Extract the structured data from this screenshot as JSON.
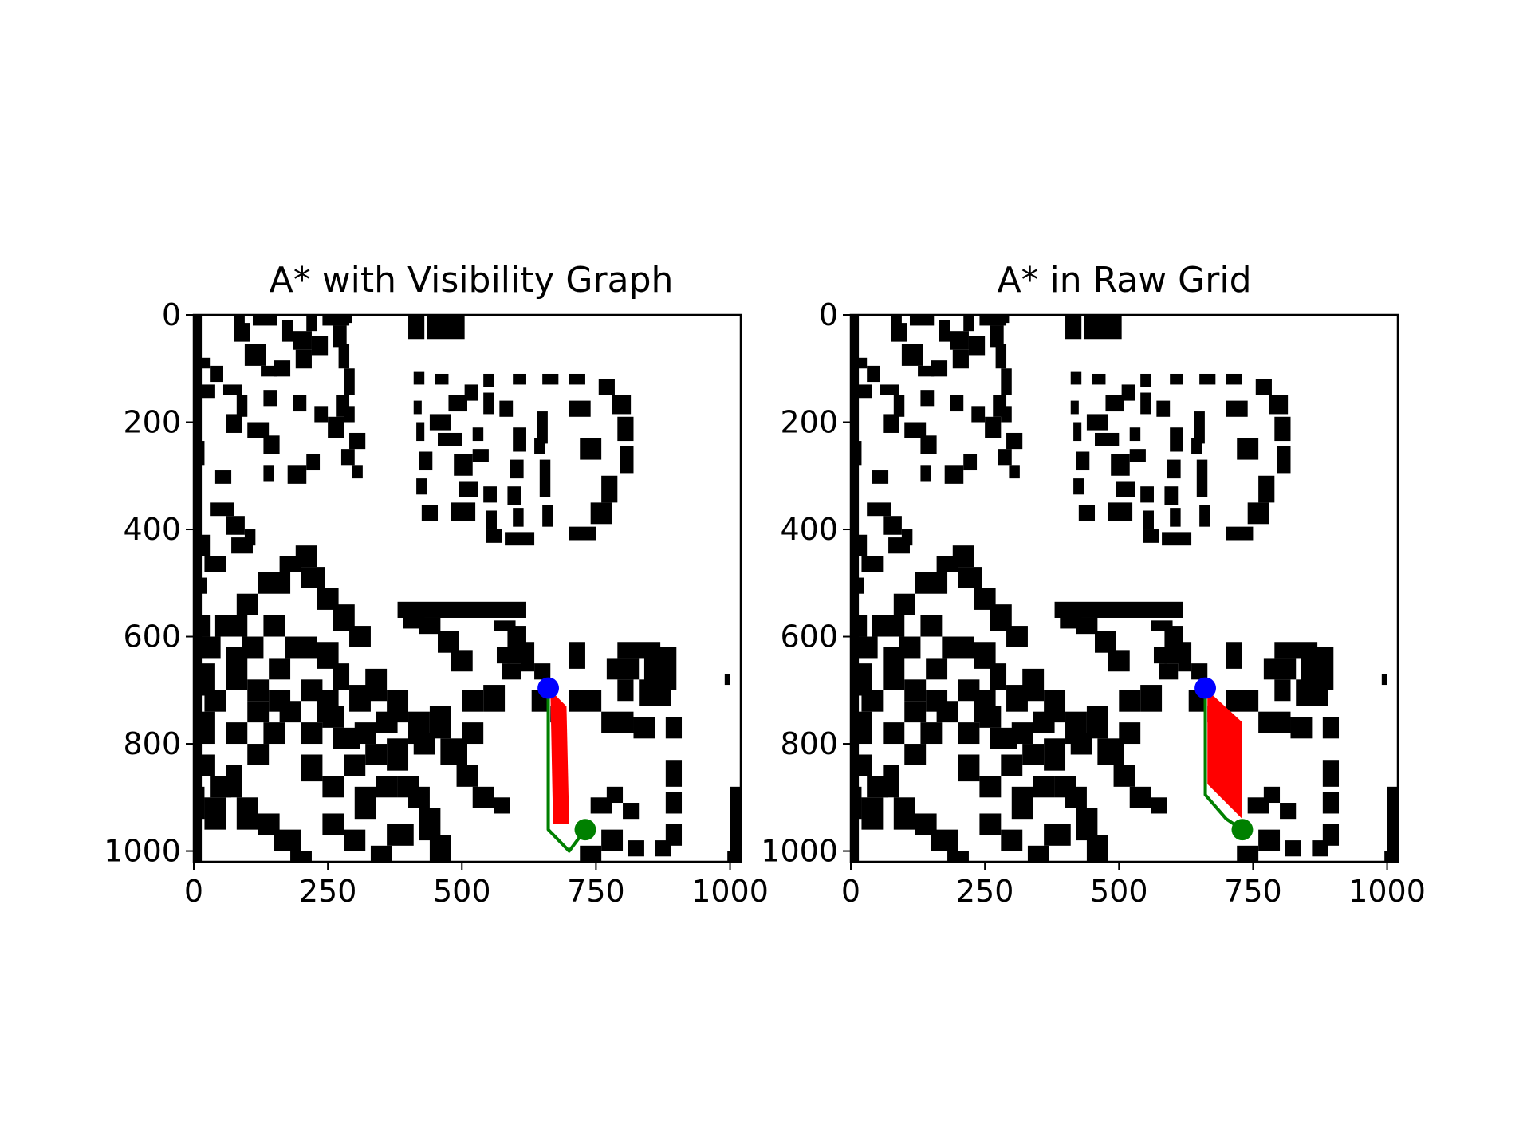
{
  "chart_data": [
    {
      "type": "map-path",
      "title": "A* with Visibility Graph",
      "xlim": [
        0,
        1020
      ],
      "ylim": [
        1020,
        0
      ],
      "xticks": [
        0,
        250,
        500,
        750,
        1000
      ],
      "yticks": [
        0,
        200,
        400,
        600,
        800,
        1000
      ],
      "start": {
        "x": 661,
        "y": 696,
        "color": "#0000ff"
      },
      "goal": {
        "x": 730,
        "y": 960,
        "color": "#008000"
      },
      "path": {
        "color": "#008000",
        "points": [
          [
            661,
            696
          ],
          [
            661,
            960
          ],
          [
            700,
            1000
          ],
          [
            730,
            960
          ]
        ]
      },
      "explored_region": {
        "color": "#ff0000",
        "points": [
          [
            665,
            700
          ],
          [
            695,
            730
          ],
          [
            700,
            950
          ],
          [
            670,
            950
          ]
        ]
      }
    },
    {
      "type": "map-path",
      "title": "A* in Raw Grid",
      "xlim": [
        0,
        1020
      ],
      "ylim": [
        1020,
        0
      ],
      "xticks": [
        0,
        250,
        500,
        750,
        1000
      ],
      "yticks": [
        0,
        200,
        400,
        600,
        800,
        1000
      ],
      "start": {
        "x": 661,
        "y": 696,
        "color": "#0000ff"
      },
      "goal": {
        "x": 730,
        "y": 960,
        "color": "#008000"
      },
      "path": {
        "color": "#008000",
        "points": [
          [
            661,
            696
          ],
          [
            661,
            895
          ],
          [
            700,
            940
          ],
          [
            730,
            960
          ]
        ]
      },
      "explored_region": {
        "color": "#ff0000",
        "points": [
          [
            665,
            700
          ],
          [
            730,
            760
          ],
          [
            730,
            940
          ],
          [
            665,
            875
          ]
        ]
      }
    }
  ],
  "obstacles": [
    [
      0,
      0,
      15,
      1020
    ],
    [
      75,
      0,
      20,
      30
    ],
    [
      110,
      0,
      45,
      20
    ],
    [
      165,
      10,
      20,
      40
    ],
    [
      185,
      30,
      35,
      35
    ],
    [
      210,
      0,
      20,
      30
    ],
    [
      240,
      0,
      50,
      20
    ],
    [
      75,
      15,
      30,
      35
    ],
    [
      95,
      55,
      40,
      40
    ],
    [
      125,
      95,
      30,
      20
    ],
    [
      150,
      85,
      30,
      30
    ],
    [
      190,
      65,
      30,
      35
    ],
    [
      220,
      40,
      30,
      35
    ],
    [
      260,
      20,
      25,
      40
    ],
    [
      270,
      55,
      20,
      45
    ],
    [
      280,
      100,
      20,
      50
    ],
    [
      265,
      150,
      25,
      40
    ],
    [
      250,
      190,
      30,
      40
    ],
    [
      0,
      80,
      30,
      20
    ],
    [
      30,
      95,
      25,
      30
    ],
    [
      10,
      130,
      30,
      25
    ],
    [
      55,
      130,
      35,
      20
    ],
    [
      80,
      150,
      20,
      40
    ],
    [
      130,
      140,
      25,
      30
    ],
    [
      185,
      150,
      25,
      30
    ],
    [
      225,
      170,
      25,
      30
    ],
    [
      280,
      170,
      20,
      30
    ],
    [
      290,
      220,
      30,
      30
    ],
    [
      60,
      185,
      30,
      35
    ],
    [
      100,
      200,
      40,
      30
    ],
    [
      130,
      225,
      30,
      35
    ],
    [
      0,
      235,
      20,
      45
    ],
    [
      40,
      290,
      30,
      25
    ],
    [
      130,
      280,
      20,
      30
    ],
    [
      175,
      280,
      35,
      35
    ],
    [
      210,
      260,
      25,
      30
    ],
    [
      275,
      250,
      25,
      30
    ],
    [
      295,
      280,
      20,
      25
    ],
    [
      30,
      350,
      45,
      25
    ],
    [
      60,
      375,
      35,
      35
    ],
    [
      95,
      400,
      20,
      30
    ],
    [
      70,
      415,
      40,
      30
    ],
    [
      0,
      410,
      30,
      40
    ],
    [
      20,
      450,
      40,
      30
    ],
    [
      0,
      490,
      25,
      30
    ],
    [
      280,
      0,
      15,
      15
    ],
    [
      400,
      0,
      30,
      45
    ],
    [
      435,
      0,
      70,
      45
    ],
    [
      410,
      105,
      20,
      25
    ],
    [
      450,
      110,
      25,
      20
    ],
    [
      540,
      110,
      20,
      25
    ],
    [
      595,
      110,
      25,
      20
    ],
    [
      650,
      110,
      30,
      20
    ],
    [
      700,
      110,
      30,
      20
    ],
    [
      410,
      160,
      15,
      25
    ],
    [
      415,
      200,
      15,
      35
    ],
    [
      420,
      255,
      25,
      35
    ],
    [
      415,
      305,
      20,
      30
    ],
    [
      425,
      355,
      30,
      30
    ],
    [
      440,
      185,
      40,
      30
    ],
    [
      475,
      150,
      35,
      30
    ],
    [
      505,
      130,
      25,
      30
    ],
    [
      540,
      145,
      20,
      40
    ],
    [
      455,
      220,
      45,
      25
    ],
    [
      485,
      260,
      35,
      40
    ],
    [
      520,
      210,
      20,
      25
    ],
    [
      520,
      250,
      30,
      25
    ],
    [
      570,
      160,
      25,
      30
    ],
    [
      595,
      210,
      25,
      45
    ],
    [
      590,
      270,
      25,
      35
    ],
    [
      585,
      320,
      25,
      35
    ],
    [
      595,
      360,
      20,
      35
    ],
    [
      640,
      180,
      20,
      60
    ],
    [
      645,
      270,
      20,
      70
    ],
    [
      650,
      355,
      20,
      40
    ],
    [
      495,
      310,
      35,
      30
    ],
    [
      480,
      350,
      45,
      35
    ],
    [
      540,
      320,
      25,
      30
    ],
    [
      545,
      365,
      20,
      35
    ],
    [
      545,
      400,
      30,
      25
    ],
    [
      580,
      405,
      55,
      25
    ],
    [
      700,
      395,
      50,
      25
    ],
    [
      740,
      350,
      40,
      40
    ],
    [
      760,
      300,
      30,
      50
    ],
    [
      755,
      120,
      30,
      30
    ],
    [
      780,
      150,
      35,
      35
    ],
    [
      790,
      190,
      30,
      45
    ],
    [
      795,
      245,
      25,
      50
    ],
    [
      700,
      160,
      40,
      30
    ],
    [
      720,
      230,
      40,
      40
    ],
    [
      635,
      230,
      20,
      30
    ],
    [
      380,
      535,
      240,
      30
    ],
    [
      560,
      570,
      40,
      20
    ],
    [
      585,
      580,
      35,
      70
    ],
    [
      420,
      565,
      40,
      30
    ],
    [
      455,
      590,
      40,
      40
    ],
    [
      480,
      625,
      40,
      40
    ],
    [
      390,
      545,
      40,
      40
    ],
    [
      565,
      620,
      25,
      30
    ],
    [
      575,
      650,
      35,
      30
    ],
    [
      0,
      560,
      30,
      40
    ],
    [
      0,
      600,
      50,
      40
    ],
    [
      40,
      560,
      60,
      40
    ],
    [
      80,
      520,
      40,
      40
    ],
    [
      120,
      480,
      60,
      40
    ],
    [
      160,
      450,
      40,
      30
    ],
    [
      190,
      430,
      40,
      40
    ],
    [
      200,
      470,
      45,
      40
    ],
    [
      230,
      510,
      40,
      40
    ],
    [
      260,
      540,
      40,
      50
    ],
    [
      290,
      580,
      40,
      40
    ],
    [
      0,
      650,
      40,
      60
    ],
    [
      20,
      700,
      40,
      40
    ],
    [
      60,
      620,
      40,
      80
    ],
    [
      90,
      600,
      40,
      40
    ],
    [
      130,
      560,
      40,
      40
    ],
    [
      100,
      680,
      40,
      40
    ],
    [
      140,
      640,
      40,
      40
    ],
    [
      170,
      600,
      60,
      40
    ],
    [
      230,
      610,
      40,
      50
    ],
    [
      260,
      650,
      30,
      50
    ],
    [
      0,
      740,
      40,
      60
    ],
    [
      60,
      760,
      40,
      40
    ],
    [
      100,
      720,
      40,
      40
    ],
    [
      140,
      700,
      40,
      40
    ],
    [
      200,
      680,
      40,
      40
    ],
    [
      230,
      700,
      40,
      60
    ],
    [
      290,
      690,
      40,
      50
    ],
    [
      320,
      660,
      40,
      60
    ],
    [
      360,
      700,
      40,
      60
    ],
    [
      400,
      740,
      40,
      60
    ],
    [
      130,
      760,
      40,
      40
    ],
    [
      160,
      720,
      40,
      40
    ],
    [
      100,
      800,
      40,
      40
    ],
    [
      0,
      820,
      40,
      40
    ],
    [
      30,
      860,
      40,
      40
    ],
    [
      0,
      880,
      20,
      60
    ],
    [
      20,
      900,
      40,
      60
    ],
    [
      60,
      840,
      30,
      60
    ],
    [
      80,
      900,
      40,
      60
    ],
    [
      120,
      930,
      40,
      40
    ],
    [
      150,
      960,
      50,
      40
    ],
    [
      180,
      1000,
      40,
      20
    ],
    [
      200,
      760,
      40,
      40
    ],
    [
      240,
      730,
      40,
      40
    ],
    [
      260,
      770,
      50,
      40
    ],
    [
      300,
      760,
      40,
      40
    ],
    [
      340,
      740,
      40,
      40
    ],
    [
      200,
      820,
      40,
      50
    ],
    [
      240,
      860,
      40,
      40
    ],
    [
      280,
      820,
      40,
      40
    ],
    [
      320,
      800,
      40,
      40
    ],
    [
      360,
      790,
      40,
      60
    ],
    [
      240,
      930,
      40,
      40
    ],
    [
      280,
      960,
      40,
      40
    ],
    [
      300,
      880,
      40,
      60
    ],
    [
      340,
      860,
      40,
      40
    ],
    [
      380,
      860,
      40,
      40
    ],
    [
      410,
      780,
      40,
      40
    ],
    [
      440,
      730,
      40,
      60
    ],
    [
      460,
      790,
      50,
      50
    ],
    [
      500,
      760,
      40,
      40
    ],
    [
      400,
      880,
      40,
      40
    ],
    [
      420,
      920,
      40,
      60
    ],
    [
      440,
      970,
      40,
      50
    ],
    [
      360,
      950,
      50,
      40
    ],
    [
      330,
      990,
      40,
      30
    ],
    [
      500,
      700,
      40,
      40
    ],
    [
      540,
      690,
      40,
      50
    ],
    [
      490,
      840,
      40,
      40
    ],
    [
      520,
      880,
      40,
      40
    ],
    [
      560,
      900,
      30,
      30
    ],
    [
      700,
      610,
      30,
      50
    ],
    [
      610,
      610,
      25,
      55
    ],
    [
      635,
      650,
      30,
      30
    ],
    [
      630,
      700,
      30,
      40
    ],
    [
      665,
      730,
      20,
      30
    ],
    [
      790,
      610,
      80,
      30
    ],
    [
      770,
      640,
      60,
      40
    ],
    [
      840,
      620,
      60,
      80
    ],
    [
      830,
      680,
      60,
      50
    ],
    [
      790,
      680,
      30,
      40
    ],
    [
      700,
      700,
      60,
      40
    ],
    [
      760,
      740,
      60,
      40
    ],
    [
      820,
      750,
      40,
      40
    ],
    [
      880,
      750,
      30,
      40
    ],
    [
      880,
      830,
      30,
      50
    ],
    [
      880,
      890,
      30,
      40
    ],
    [
      880,
      950,
      30,
      40
    ],
    [
      860,
      980,
      30,
      30
    ],
    [
      810,
      980,
      30,
      30
    ],
    [
      740,
      900,
      40,
      30
    ],
    [
      770,
      880,
      30,
      30
    ],
    [
      800,
      910,
      30,
      30
    ],
    [
      760,
      960,
      40,
      40
    ],
    [
      720,
      990,
      40,
      30
    ],
    [
      990,
      670,
      10,
      20
    ],
    [
      1000,
      880,
      20,
      130
    ],
    [
      995,
      1000,
      25,
      20
    ]
  ]
}
